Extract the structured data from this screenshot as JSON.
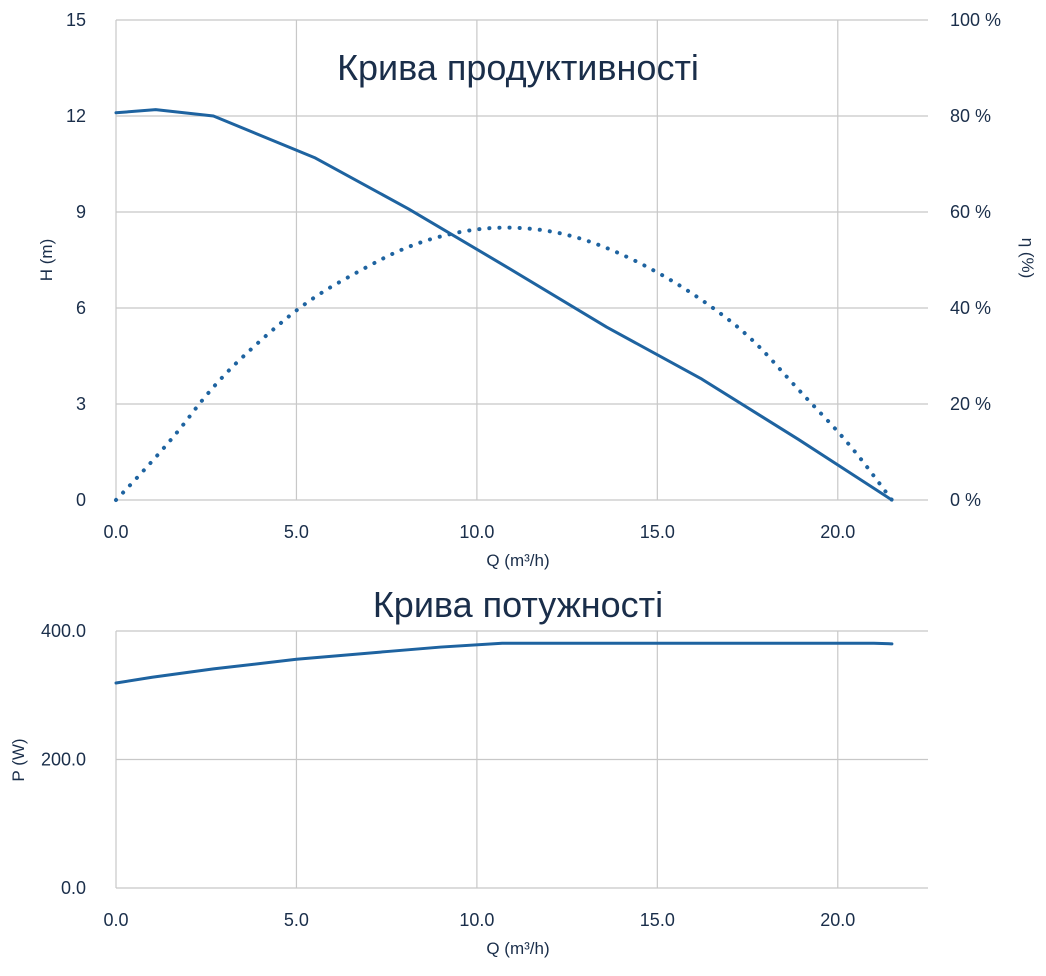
{
  "chart_data": [
    {
      "type": "line",
      "title": "Крива продуктивності",
      "xlabel": "Q (m³/h)",
      "ylabel": "H (m)",
      "y2label": "η (%)",
      "xlim": [
        0,
        22.5
      ],
      "ylim": [
        0,
        15
      ],
      "y2lim": [
        0,
        100
      ],
      "grid": true,
      "x_ticks": [
        "0.0",
        "5.0",
        "10.0",
        "15.0",
        "20.0"
      ],
      "y_ticks": [
        "0",
        "3",
        "6",
        "9",
        "12",
        "15"
      ],
      "y2_ticks": [
        "0 %",
        "20 %",
        "40 %",
        "60 %",
        "80 %",
        "100 %"
      ],
      "series": [
        {
          "axis": "left",
          "style": "solid",
          "x": [
            0,
            1.1,
            2.7,
            5.5,
            8.1,
            10.8,
            13.6,
            16.2,
            18.9,
            21.5
          ],
          "y": [
            12.1,
            12.2,
            12.0,
            10.7,
            9.1,
            7.3,
            5.4,
            3.8,
            1.9,
            0.0
          ]
        },
        {
          "axis": "right",
          "style": "dotted",
          "x": [
            0,
            1.4,
            2.7,
            4.1,
            5.4,
            6.8,
            8.1,
            9.5,
            10.8,
            12.2,
            13.5,
            14.9,
            16.2,
            17.6,
            18.9,
            20.3,
            21.5
          ],
          "y": [
            0,
            11,
            24,
            34,
            42,
            48,
            53,
            56,
            57,
            56,
            53,
            48,
            42,
            34,
            23,
            12,
            0
          ]
        }
      ]
    },
    {
      "type": "line",
      "title": "Крива потужності",
      "xlabel": "Q (m³/h)",
      "ylabel": "P (W)",
      "xlim": [
        0,
        22.5
      ],
      "ylim": [
        0,
        400
      ],
      "grid": true,
      "x_ticks": [
        "0.0",
        "5.0",
        "10.0",
        "15.0",
        "20.0"
      ],
      "y_ticks": [
        "0.0",
        "200.0",
        "400.0"
      ],
      "series": [
        {
          "style": "solid",
          "x": [
            0,
            1.0,
            2.7,
            5.0,
            7.5,
            9.0,
            10.7,
            13.5,
            16.0,
            18.9,
            21.0,
            21.5
          ],
          "y": [
            319,
            328,
            341,
            356,
            368,
            375,
            381,
            381,
            381,
            381,
            381,
            380
          ]
        }
      ]
    }
  ],
  "colors": {
    "line": "#1e63a0",
    "grid": "#c8c8c8",
    "text": "#1a2e4a"
  }
}
